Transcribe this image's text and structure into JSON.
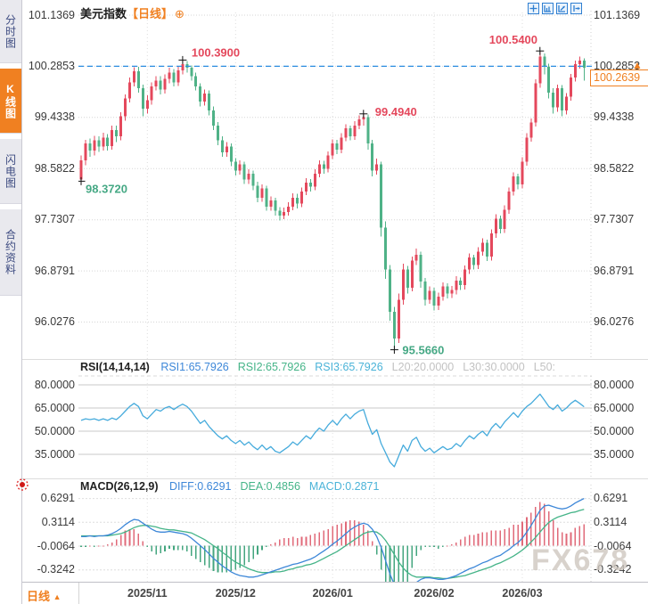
{
  "sidebar": {
    "items": [
      {
        "label": "分时图",
        "active": false
      },
      {
        "label": "K线图",
        "active": true
      },
      {
        "label": "闪电图",
        "active": false
      },
      {
        "label": "合约资料",
        "active": false
      }
    ]
  },
  "header": {
    "title": "美元指数",
    "period_tag": "【日线】",
    "add_icon": "⊕",
    "toolbar_icons": [
      "crosshair-icon",
      "axis-range-icon",
      "axis-pointer-icon",
      "exit-chart-icon"
    ]
  },
  "price_axis": {
    "tick_labels": [
      "101.1369",
      "100.2853",
      "99.4338",
      "98.5822",
      "97.7307",
      "96.8791",
      "96.0276"
    ],
    "last_price": "100.2639",
    "last_price_arrow": "▲"
  },
  "rsi_panel": {
    "title": "RSI(14,14,14)",
    "tick_labels": [
      "80.0000",
      "65.0000",
      "50.0000",
      "35.0000"
    ],
    "legend": [
      {
        "text": "RSI1:65.7926",
        "color": "#3d87d8"
      },
      {
        "text": "RSI2:65.7926",
        "color": "#45b488"
      },
      {
        "text": "RSI3:65.7926",
        "color": "#4ab3d8"
      },
      {
        "text": "L20:20.0000",
        "color": "#c2c2c2"
      },
      {
        "text": "L30:30.0000",
        "color": "#c2c2c2"
      },
      {
        "text": "L50:",
        "color": "#c2c2c2"
      }
    ]
  },
  "macd_panel": {
    "title": "MACD(26,12,9)",
    "tick_labels": [
      "0.6291",
      "0.3114",
      "-0.0064",
      "-0.3242"
    ],
    "legend": [
      {
        "text": "DIFF:0.6291",
        "color": "#3d87d8"
      },
      {
        "text": "DEA:0.4856",
        "color": "#45b488"
      },
      {
        "text": "MACD:0.2871",
        "color": "#4ab3d8"
      }
    ]
  },
  "bottom_bar": {
    "period_label": "日线",
    "period_arrow": "▲",
    "x_labels": [
      "2025/11",
      "2025/12",
      "2026/01",
      "2026/02",
      "2026/03"
    ]
  },
  "watermark": "FX678",
  "colors": {
    "up": "#e4485c",
    "down": "#4fb287",
    "hist_up": "#e06a79",
    "hist_down": "#44a67f",
    "accent_orange": "#f08021",
    "last_price_line": "#2a8ce0",
    "rsi_line": "#46abdc",
    "diff_line": "#3d87d8",
    "dea_line": "#45b488",
    "annotation_high": "#e4485c",
    "annotation_low": "#45a884",
    "grid": "#d6d6d6",
    "toolbar_blue": "#2f7fd1"
  },
  "chart_data": [
    {
      "type": "candlestick",
      "name": "美元指数 日线",
      "y_ticks": [
        101.1369,
        100.2853,
        99.4338,
        98.5822,
        97.7307,
        96.8791,
        96.0276
      ],
      "last_close": 100.2639,
      "last_price_line": 100.2853,
      "months": [
        {
          "label": "2025/11",
          "index": 15
        },
        {
          "label": "2025/12",
          "index": 35
        },
        {
          "label": "2026/01",
          "index": 57
        },
        {
          "label": "2026/02",
          "index": 80
        },
        {
          "label": "2026/03",
          "index": 100
        }
      ],
      "annotations": [
        {
          "index": 0,
          "price": 98.372,
          "label": "98.3720",
          "kind": "low",
          "offset": [
            5,
            13
          ]
        },
        {
          "index": 23,
          "price": 100.39,
          "label": "100.3900",
          "kind": "high",
          "offset": [
            10,
            -4
          ]
        },
        {
          "index": 64,
          "price": 99.494,
          "label": "99.4940",
          "kind": "high",
          "offset": [
            13,
            2
          ]
        },
        {
          "index": 71,
          "price": 95.566,
          "label": "95.5660",
          "kind": "low",
          "offset": [
            9,
            5
          ]
        },
        {
          "index": 104,
          "price": 100.54,
          "label": "100.5400",
          "kind": "high",
          "offset": [
            -57,
            -8
          ]
        }
      ],
      "ohlc": [
        [
          98.4,
          98.8,
          98.372,
          98.72
        ],
        [
          98.72,
          99.06,
          98.64,
          99.0
        ],
        [
          99.0,
          99.08,
          98.78,
          98.88
        ],
        [
          98.88,
          99.13,
          98.8,
          99.05
        ],
        [
          99.05,
          99.12,
          98.86,
          98.95
        ],
        [
          98.95,
          99.18,
          98.88,
          99.1
        ],
        [
          99.1,
          99.16,
          98.88,
          98.96
        ],
        [
          98.96,
          99.3,
          98.9,
          99.22
        ],
        [
          99.22,
          99.3,
          99.02,
          99.12
        ],
        [
          99.12,
          99.52,
          99.05,
          99.45
        ],
        [
          99.45,
          99.82,
          99.38,
          99.75
        ],
        [
          99.75,
          100.1,
          99.68,
          100.02
        ],
        [
          100.02,
          100.27,
          99.95,
          100.2
        ],
        [
          100.2,
          100.28,
          99.85,
          99.92
        ],
        [
          99.92,
          99.98,
          99.45,
          99.58
        ],
        [
          99.58,
          99.8,
          99.5,
          99.72
        ],
        [
          99.72,
          100.02,
          99.65,
          99.95
        ],
        [
          99.95,
          100.12,
          99.88,
          100.05
        ],
        [
          100.05,
          100.12,
          99.82,
          99.9
        ],
        [
          99.9,
          100.15,
          99.83,
          100.08
        ],
        [
          100.08,
          100.26,
          100.0,
          100.18
        ],
        [
          100.18,
          100.24,
          99.95,
          100.02
        ],
        [
          100.02,
          100.28,
          99.96,
          100.22
        ],
        [
          100.22,
          100.39,
          100.15,
          100.32
        ],
        [
          100.32,
          100.37,
          100.18,
          100.26
        ],
        [
          100.26,
          100.3,
          100.05,
          100.12
        ],
        [
          100.12,
          100.18,
          99.88,
          99.95
        ],
        [
          99.95,
          100.0,
          99.62,
          99.7
        ],
        [
          99.7,
          99.9,
          99.63,
          99.83
        ],
        [
          99.83,
          99.88,
          99.47,
          99.55
        ],
        [
          99.55,
          99.62,
          99.22,
          99.3
        ],
        [
          99.3,
          99.36,
          98.97,
          99.05
        ],
        [
          99.05,
          99.12,
          98.78,
          98.85
        ],
        [
          98.85,
          99.02,
          98.78,
          98.95
        ],
        [
          98.95,
          99.0,
          98.62,
          98.7
        ],
        [
          98.7,
          98.76,
          98.47,
          98.55
        ],
        [
          98.55,
          98.72,
          98.48,
          98.65
        ],
        [
          98.65,
          98.7,
          98.33,
          98.4
        ],
        [
          98.4,
          98.57,
          98.33,
          98.5
        ],
        [
          98.5,
          98.55,
          98.22,
          98.3
        ],
        [
          98.3,
          98.36,
          98.02,
          98.1
        ],
        [
          98.1,
          98.32,
          98.03,
          98.25
        ],
        [
          98.25,
          98.3,
          97.88,
          97.95
        ],
        [
          97.95,
          98.12,
          97.88,
          98.05
        ],
        [
          98.05,
          98.1,
          97.8,
          97.88
        ],
        [
          97.88,
          97.94,
          97.72,
          97.8
        ],
        [
          97.8,
          97.93,
          97.74,
          97.86
        ],
        [
          97.86,
          98.02,
          97.8,
          97.95
        ],
        [
          97.95,
          98.17,
          97.89,
          98.1
        ],
        [
          98.1,
          98.16,
          97.92,
          98.0
        ],
        [
          98.0,
          98.27,
          97.94,
          98.2
        ],
        [
          98.2,
          98.42,
          98.14,
          98.35
        ],
        [
          98.35,
          98.41,
          98.2,
          98.28
        ],
        [
          98.28,
          98.57,
          98.22,
          98.5
        ],
        [
          98.5,
          98.72,
          98.44,
          98.65
        ],
        [
          98.65,
          98.71,
          98.5,
          98.58
        ],
        [
          98.58,
          98.87,
          98.52,
          98.8
        ],
        [
          98.8,
          99.07,
          98.74,
          99.0
        ],
        [
          99.0,
          99.06,
          98.82,
          98.9
        ],
        [
          98.9,
          99.17,
          98.84,
          99.1
        ],
        [
          99.1,
          99.32,
          99.04,
          99.25
        ],
        [
          99.25,
          99.3,
          99.05,
          99.12
        ],
        [
          99.12,
          99.37,
          99.06,
          99.3
        ],
        [
          99.3,
          99.47,
          99.24,
          99.4
        ],
        [
          99.4,
          99.494,
          99.3,
          99.44
        ],
        [
          99.44,
          99.48,
          98.9,
          99.0
        ],
        [
          99.0,
          99.06,
          98.45,
          98.55
        ],
        [
          98.55,
          98.75,
          98.48,
          98.65
        ],
        [
          98.65,
          98.7,
          97.45,
          97.6
        ],
        [
          97.6,
          97.7,
          96.75,
          96.9
        ],
        [
          96.9,
          96.98,
          96.05,
          96.2
        ],
        [
          96.2,
          96.28,
          95.566,
          95.75
        ],
        [
          95.75,
          96.5,
          95.68,
          96.4
        ],
        [
          96.4,
          97.0,
          96.32,
          96.9
        ],
        [
          96.9,
          96.96,
          96.5,
          96.6
        ],
        [
          96.6,
          97.12,
          96.54,
          97.05
        ],
        [
          97.05,
          97.25,
          96.98,
          97.15
        ],
        [
          97.15,
          97.2,
          96.6,
          96.7
        ],
        [
          96.7,
          96.76,
          96.3,
          96.4
        ],
        [
          96.4,
          96.62,
          96.33,
          96.55
        ],
        [
          96.55,
          96.6,
          96.22,
          96.3
        ],
        [
          96.3,
          96.52,
          96.23,
          96.45
        ],
        [
          96.45,
          96.69,
          96.38,
          96.62
        ],
        [
          96.62,
          96.67,
          96.42,
          96.5
        ],
        [
          96.5,
          96.63,
          96.43,
          96.56
        ],
        [
          96.56,
          96.79,
          96.49,
          96.72
        ],
        [
          96.72,
          96.77,
          96.56,
          96.64
        ],
        [
          96.64,
          96.97,
          96.57,
          96.9
        ],
        [
          96.9,
          97.17,
          96.83,
          97.1
        ],
        [
          97.1,
          97.15,
          96.9,
          96.98
        ],
        [
          96.98,
          97.27,
          96.91,
          97.2
        ],
        [
          97.2,
          97.42,
          97.13,
          97.35
        ],
        [
          97.35,
          97.4,
          97.04,
          97.12
        ],
        [
          97.12,
          97.57,
          97.05,
          97.5
        ],
        [
          97.5,
          97.82,
          97.43,
          97.75
        ],
        [
          97.75,
          97.8,
          97.5,
          97.58
        ],
        [
          97.58,
          97.97,
          97.51,
          97.9
        ],
        [
          97.9,
          98.27,
          97.83,
          98.2
        ],
        [
          98.2,
          98.52,
          98.13,
          98.45
        ],
        [
          98.45,
          98.5,
          98.24,
          98.32
        ],
        [
          98.32,
          98.77,
          98.25,
          98.7
        ],
        [
          98.7,
          99.17,
          98.63,
          99.1
        ],
        [
          99.1,
          99.42,
          99.03,
          99.35
        ],
        [
          99.35,
          100.07,
          99.28,
          100.0
        ],
        [
          100.0,
          100.54,
          99.93,
          100.45
        ],
        [
          100.45,
          100.5,
          100.15,
          100.28
        ],
        [
          100.28,
          100.33,
          99.75,
          99.85
        ],
        [
          99.85,
          99.92,
          99.5,
          99.6
        ],
        [
          99.6,
          99.98,
          99.53,
          99.92
        ],
        [
          99.92,
          99.97,
          99.45,
          99.55
        ],
        [
          99.55,
          99.84,
          99.48,
          99.78
        ],
        [
          99.78,
          100.16,
          99.71,
          100.1
        ],
        [
          100.1,
          100.38,
          100.03,
          100.32
        ],
        [
          100.32,
          100.45,
          100.25,
          100.38
        ],
        [
          100.38,
          100.42,
          100.05,
          100.2639
        ]
      ]
    },
    {
      "type": "line",
      "name": "RSI(14,14,14)",
      "y_ticks": [
        80,
        65,
        50,
        35
      ],
      "last_values": {
        "RSI1": 65.7926,
        "RSI2": 65.7926,
        "RSI3": 65.7926,
        "L20": 20.0,
        "L30": 30.0
      },
      "values": [
        57,
        58,
        57.5,
        58,
        57,
        58,
        57,
        58.5,
        57.5,
        60,
        63,
        66,
        68,
        66,
        60,
        58,
        61,
        64,
        63,
        65,
        66,
        64,
        66,
        67.5,
        66,
        63,
        59,
        55,
        57,
        53,
        50,
        47,
        45,
        47,
        44,
        42,
        44,
        41,
        43,
        40,
        38,
        41,
        38,
        40,
        37,
        36,
        38,
        40,
        43,
        41,
        44,
        47,
        45,
        49,
        52,
        50,
        54,
        57,
        54,
        58,
        61,
        58,
        61,
        63,
        64,
        55,
        48,
        51,
        42,
        36,
        30,
        27,
        34,
        41,
        37,
        44,
        46,
        40,
        37,
        39,
        36,
        38,
        40,
        38,
        39,
        42,
        40,
        44,
        47,
        45,
        48,
        50,
        47,
        52,
        55,
        52,
        56,
        59,
        62,
        59,
        63,
        66,
        68,
        71,
        74,
        70,
        66,
        64,
        67,
        63,
        65,
        68,
        70,
        68,
        65.79
      ]
    },
    {
      "type": "macd",
      "name": "MACD(26,12,9)",
      "y_ticks": [
        0.6291,
        0.3114,
        -0.0064,
        -0.3242
      ],
      "hist_formula": "2*(diff-dea)",
      "last_values": {
        "DIFF": 0.6291,
        "DEA": 0.4856,
        "MACD": 0.2871
      },
      "diff": [
        0.12,
        0.12,
        0.13,
        0.12,
        0.13,
        0.13,
        0.14,
        0.16,
        0.19,
        0.23,
        0.28,
        0.32,
        0.35,
        0.34,
        0.3,
        0.26,
        0.22,
        0.19,
        0.18,
        0.18,
        0.19,
        0.18,
        0.17,
        0.16,
        0.14,
        0.1,
        0.05,
        0.0,
        -0.05,
        -0.11,
        -0.17,
        -0.22,
        -0.27,
        -0.31,
        -0.35,
        -0.38,
        -0.4,
        -0.41,
        -0.42,
        -0.42,
        -0.41,
        -0.39,
        -0.37,
        -0.35,
        -0.33,
        -0.31,
        -0.29,
        -0.27,
        -0.25,
        -0.24,
        -0.22,
        -0.2,
        -0.18,
        -0.15,
        -0.11,
        -0.07,
        -0.03,
        0.02,
        0.06,
        0.11,
        0.16,
        0.21,
        0.25,
        0.28,
        0.3,
        0.28,
        0.22,
        0.12,
        -0.02,
        -0.2,
        -0.38,
        -0.52,
        -0.6,
        -0.62,
        -0.6,
        -0.55,
        -0.49,
        -0.45,
        -0.43,
        -0.43,
        -0.44,
        -0.45,
        -0.45,
        -0.44,
        -0.42,
        -0.4,
        -0.37,
        -0.34,
        -0.31,
        -0.29,
        -0.26,
        -0.23,
        -0.21,
        -0.18,
        -0.15,
        -0.13,
        -0.09,
        -0.05,
        0.0,
        0.04,
        0.1,
        0.18,
        0.27,
        0.37,
        0.47,
        0.53,
        0.54,
        0.52,
        0.5,
        0.49,
        0.5,
        0.53,
        0.57,
        0.6,
        0.6291
      ],
      "dea": [
        0.13,
        0.13,
        0.13,
        0.13,
        0.13,
        0.13,
        0.13,
        0.14,
        0.15,
        0.16,
        0.18,
        0.21,
        0.24,
        0.26,
        0.27,
        0.27,
        0.26,
        0.25,
        0.23,
        0.22,
        0.21,
        0.21,
        0.2,
        0.19,
        0.18,
        0.17,
        0.14,
        0.11,
        0.08,
        0.04,
        0.0,
        -0.04,
        -0.09,
        -0.13,
        -0.18,
        -0.22,
        -0.25,
        -0.28,
        -0.31,
        -0.33,
        -0.35,
        -0.36,
        -0.36,
        -0.36,
        -0.35,
        -0.35,
        -0.34,
        -0.32,
        -0.31,
        -0.29,
        -0.28,
        -0.26,
        -0.25,
        -0.23,
        -0.2,
        -0.17,
        -0.14,
        -0.11,
        -0.08,
        -0.04,
        0.0,
        0.04,
        0.08,
        0.12,
        0.16,
        0.18,
        0.19,
        0.18,
        0.14,
        0.07,
        -0.02,
        -0.12,
        -0.22,
        -0.3,
        -0.36,
        -0.4,
        -0.42,
        -0.42,
        -0.42,
        -0.42,
        -0.43,
        -0.43,
        -0.44,
        -0.44,
        -0.43,
        -0.42,
        -0.41,
        -0.4,
        -0.38,
        -0.36,
        -0.34,
        -0.32,
        -0.3,
        -0.28,
        -0.25,
        -0.23,
        -0.2,
        -0.17,
        -0.14,
        -0.1,
        -0.06,
        -0.01,
        0.05,
        0.11,
        0.18,
        0.25,
        0.31,
        0.35,
        0.38,
        0.4,
        0.42,
        0.44,
        0.45,
        0.47,
        0.4856
      ]
    }
  ]
}
